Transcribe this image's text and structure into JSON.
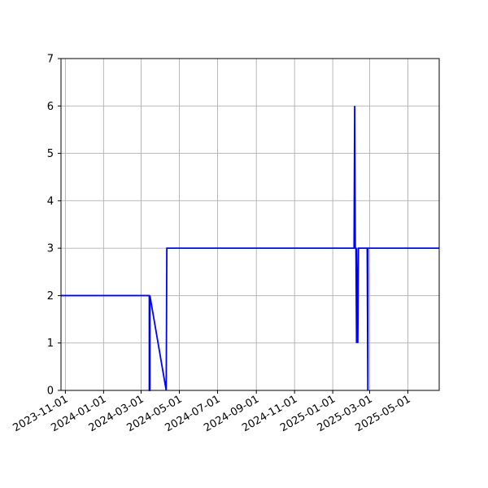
{
  "chart_data": {
    "type": "line",
    "title": "",
    "xlabel": "",
    "ylabel": "",
    "x_axis_type": "date",
    "xlim": [
      "2023-10-25",
      "2025-06-20"
    ],
    "ylim": [
      0,
      7
    ],
    "grid": true,
    "legend": "none",
    "x_ticks": [
      "2023-11-01",
      "2024-01-01",
      "2024-03-01",
      "2024-05-01",
      "2024-07-01",
      "2024-09-01",
      "2024-11-01",
      "2025-01-01",
      "2025-03-01",
      "2025-05-01"
    ],
    "y_ticks": [
      0,
      1,
      2,
      3,
      4,
      5,
      6,
      7
    ],
    "colors": {
      "series": "#0000ff",
      "grid": "#b0b0b0",
      "axes": "#000000",
      "background": "#ffffff"
    },
    "series": [
      {
        "x": [
          "2023-10-25",
          "2024-03-14",
          "2024-03-14",
          "2024-03-15",
          "2024-03-15",
          "2024-04-10",
          "2024-04-11",
          "2025-02-04",
          "2025-02-05",
          "2025-02-06",
          "2025-02-07",
          "2025-02-08",
          "2025-02-08",
          "2025-02-10",
          "2025-02-11",
          "2025-02-25",
          "2025-02-26",
          "2025-02-26",
          "2025-02-28",
          "2025-02-28",
          "2025-06-20"
        ],
        "y": [
          2,
          2,
          0,
          0,
          2,
          0,
          3,
          3,
          6,
          3,
          3,
          1,
          3,
          1,
          3,
          3,
          0,
          3,
          3,
          3,
          3
        ]
      }
    ]
  }
}
